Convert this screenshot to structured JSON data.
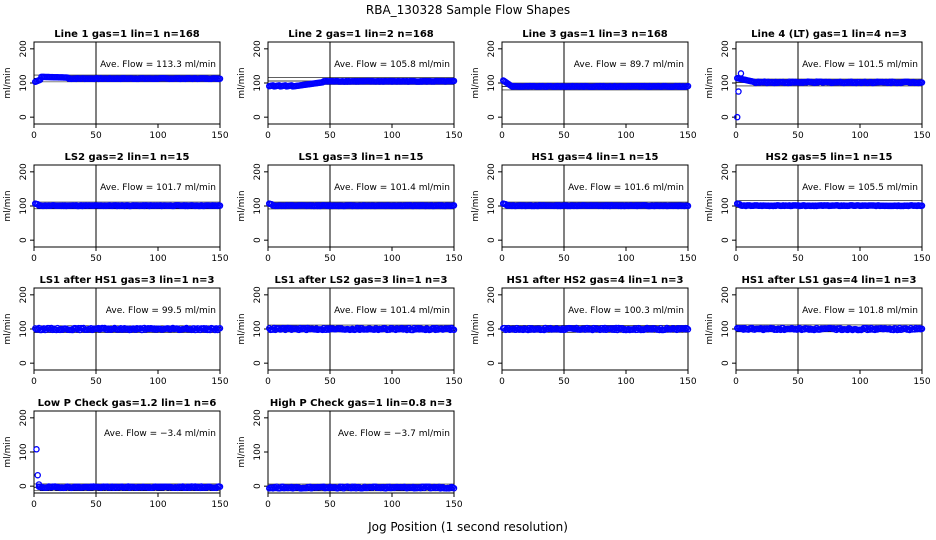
{
  "figure": {
    "title": "RBA_130328  Sample Flow Shapes",
    "xlabel": "Jog Position (1 second resolution)"
  },
  "chart_data": [
    {
      "type": "scatter",
      "title": "Line 1 gas=1 lin=1 n=168",
      "ylabel": "ml/min",
      "annotation": "Ave. Flow =  113.3  ml/min",
      "ave": 113.3,
      "xlim": [
        0,
        150
      ],
      "ylim": [
        -20,
        220
      ],
      "xticks": [
        0,
        50,
        100,
        150
      ],
      "yticks": [
        0,
        100,
        200
      ],
      "vline": 50,
      "color": "#0000ff",
      "pattern": "line1"
    },
    {
      "type": "scatter",
      "title": "Line 2 gas=1 lin=2 n=168",
      "ylabel": "ml/min",
      "annotation": "Ave. Flow =  105.8  ml/min",
      "ave": 105.8,
      "xlim": [
        0,
        150
      ],
      "ylim": [
        -20,
        220
      ],
      "xticks": [
        0,
        50,
        100,
        150
      ],
      "yticks": [
        0,
        100,
        200
      ],
      "vline": 50,
      "color": "#0000ff",
      "pattern": "line2"
    },
    {
      "type": "scatter",
      "title": "Line 3 gas=1 lin=3 n=168",
      "ylabel": "ml/min",
      "annotation": "Ave. Flow =  89.7  ml/min",
      "ave": 89.7,
      "xlim": [
        0,
        150
      ],
      "ylim": [
        -20,
        220
      ],
      "xticks": [
        0,
        50,
        100,
        150
      ],
      "yticks": [
        0,
        100,
        200
      ],
      "vline": 50,
      "color": "#0000ff",
      "pattern": "line3"
    },
    {
      "type": "scatter",
      "title": "Line 4 (LT) gas=1 lin=4 n=3",
      "ylabel": "ml/min",
      "annotation": "Ave. Flow =  101.5  ml/min",
      "ave": 101.5,
      "xlim": [
        0,
        150
      ],
      "ylim": [
        -20,
        220
      ],
      "xticks": [
        0,
        50,
        100,
        150
      ],
      "yticks": [
        0,
        100,
        200
      ],
      "vline": 50,
      "color": "#0000ff",
      "pattern": "line4"
    },
    {
      "type": "scatter",
      "title": "LS2 gas=2 lin=1 n=15",
      "ylabel": "ml/min",
      "annotation": "Ave. Flow =  101.7  ml/min",
      "ave": 101.7,
      "xlim": [
        0,
        150
      ],
      "ylim": [
        -20,
        220
      ],
      "xticks": [
        0,
        50,
        100,
        150
      ],
      "yticks": [
        0,
        100,
        200
      ],
      "vline": 50,
      "color": "#0000ff",
      "pattern": "flat"
    },
    {
      "type": "scatter",
      "title": "LS1 gas=3 lin=1 n=15",
      "ylabel": "ml/min",
      "annotation": "Ave. Flow =  101.4  ml/min",
      "ave": 101.4,
      "xlim": [
        0,
        150
      ],
      "ylim": [
        -20,
        220
      ],
      "xticks": [
        0,
        50,
        100,
        150
      ],
      "yticks": [
        0,
        100,
        200
      ],
      "vline": 50,
      "color": "#0000ff",
      "pattern": "flat"
    },
    {
      "type": "scatter",
      "title": "HS1 gas=4 lin=1 n=15",
      "ylabel": "ml/min",
      "annotation": "Ave. Flow =  101.6  ml/min",
      "ave": 101.6,
      "xlim": [
        0,
        150
      ],
      "ylim": [
        -20,
        220
      ],
      "xticks": [
        0,
        50,
        100,
        150
      ],
      "yticks": [
        0,
        100,
        200
      ],
      "vline": 50,
      "color": "#0000ff",
      "pattern": "flat"
    },
    {
      "type": "scatter",
      "title": "HS2 gas=5 lin=1 n=15",
      "ylabel": "ml/min",
      "annotation": "Ave. Flow =  105.5  ml/min",
      "ave": 105.5,
      "xlim": [
        0,
        150
      ],
      "ylim": [
        -20,
        220
      ],
      "xticks": [
        0,
        50,
        100,
        150
      ],
      "yticks": [
        0,
        100,
        200
      ],
      "vline": 50,
      "color": "#0000ff",
      "pattern": "flat"
    },
    {
      "type": "scatter",
      "title": "LS1 after HS1 gas=3 lin=1 n=3",
      "ylabel": "ml/min",
      "annotation": "Ave. Flow =  99.5  ml/min",
      "ave": 99.5,
      "xlim": [
        0,
        150
      ],
      "ylim": [
        -20,
        220
      ],
      "xticks": [
        0,
        50,
        100,
        150
      ],
      "yticks": [
        0,
        100,
        200
      ],
      "vline": 50,
      "color": "#0000ff",
      "pattern": "noisy"
    },
    {
      "type": "scatter",
      "title": "LS1 after LS2 gas=3 lin=1 n=3",
      "ylabel": "ml/min",
      "annotation": "Ave. Flow =  101.4  ml/min",
      "ave": 101.4,
      "xlim": [
        0,
        150
      ],
      "ylim": [
        -20,
        220
      ],
      "xticks": [
        0,
        50,
        100,
        150
      ],
      "yticks": [
        0,
        100,
        200
      ],
      "vline": 50,
      "color": "#0000ff",
      "pattern": "noisy"
    },
    {
      "type": "scatter",
      "title": "HS1 after HS2 gas=4 lin=1 n=3",
      "ylabel": "ml/min",
      "annotation": "Ave. Flow =  100.3  ml/min",
      "ave": 100.3,
      "xlim": [
        0,
        150
      ],
      "ylim": [
        -20,
        220
      ],
      "xticks": [
        0,
        50,
        100,
        150
      ],
      "yticks": [
        0,
        100,
        200
      ],
      "vline": 50,
      "color": "#0000ff",
      "pattern": "noisy"
    },
    {
      "type": "scatter",
      "title": "HS1 after LS1 gas=4 lin=1 n=3",
      "ylabel": "ml/min",
      "annotation": "Ave. Flow =  101.8  ml/min",
      "ave": 101.8,
      "xlim": [
        0,
        150
      ],
      "ylim": [
        -20,
        220
      ],
      "xticks": [
        0,
        50,
        100,
        150
      ],
      "yticks": [
        0,
        100,
        200
      ],
      "vline": 50,
      "color": "#0000ff",
      "pattern": "noisy"
    },
    {
      "type": "scatter",
      "title": "Low P Check gas=1.2 lin=1 n=6",
      "ylabel": "ml/min",
      "annotation": "Ave. Flow =  −3.4  ml/min",
      "ave": -3.4,
      "xlim": [
        0,
        150
      ],
      "ylim": [
        -20,
        220
      ],
      "xticks": [
        0,
        50,
        100,
        150
      ],
      "yticks": [
        0,
        100,
        200
      ],
      "vline": 50,
      "color": "#0000ff",
      "pattern": "lowp"
    },
    {
      "type": "scatter",
      "title": "High P Check gas=1 lin=0.8 n=3",
      "ylabel": "ml/min",
      "annotation": "Ave. Flow =  −3.7  ml/min",
      "ave": -3.7,
      "xlim": [
        0,
        150
      ],
      "ylim": [
        -20,
        220
      ],
      "xticks": [
        0,
        50,
        100,
        150
      ],
      "yticks": [
        0,
        100,
        200
      ],
      "vline": 50,
      "color": "#0000ff",
      "pattern": "highp"
    }
  ]
}
